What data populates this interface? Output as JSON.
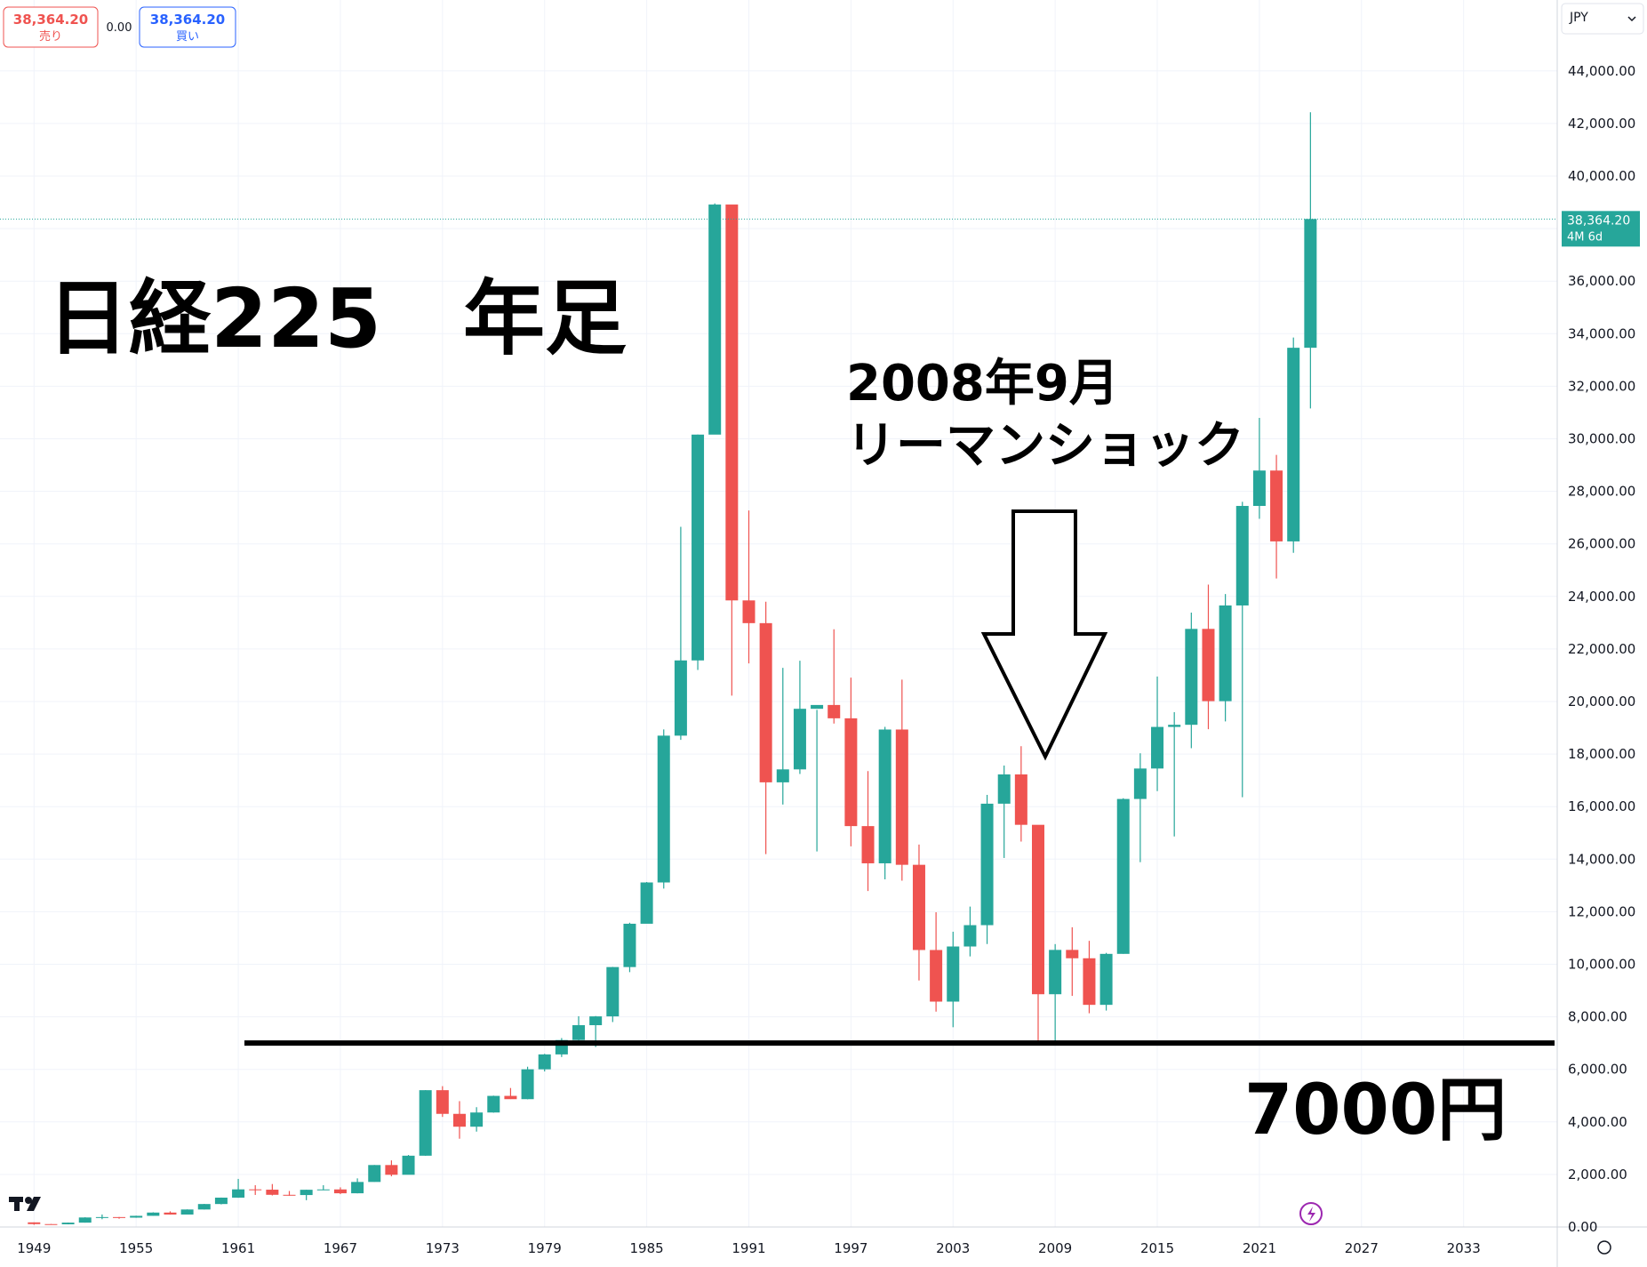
{
  "chart_data": {
    "type": "candlestick",
    "title": "日経225　年足",
    "annotations": [
      "2008年9月",
      "リーマンショック"
    ],
    "hline": {
      "value": 7000,
      "label": "7000円"
    },
    "quote": {
      "sell_price": "38,364.20",
      "sell_label": "売り",
      "spread": "0.00",
      "buy_price": "38,364.20",
      "buy_label": "買い",
      "currency": "JPY"
    },
    "price_label": {
      "value": 38364.2,
      "label": "38,364.20",
      "period": "4M 6d"
    },
    "up_color": "#26a69a",
    "down_color": "#ef5350",
    "x": [
      1949,
      1950,
      1951,
      1952,
      1953,
      1954,
      1955,
      1956,
      1957,
      1958,
      1959,
      1960,
      1961,
      1962,
      1963,
      1964,
      1965,
      1966,
      1967,
      1968,
      1969,
      1970,
      1971,
      1972,
      1973,
      1974,
      1975,
      1976,
      1977,
      1978,
      1979,
      1980,
      1981,
      1982,
      1983,
      1984,
      1985,
      1986,
      1987,
      1988,
      1989,
      1990,
      1991,
      1992,
      1993,
      1994,
      1995,
      1996,
      1997,
      1998,
      1999,
      2000,
      2001,
      2002,
      2003,
      2004,
      2005,
      2006,
      2007,
      2008,
      2009,
      2010,
      2011,
      2012,
      2013,
      2014,
      2015,
      2016,
      2017,
      2018,
      2019,
      2020,
      2021,
      2022,
      2023,
      2024
    ],
    "open": [
      176,
      110,
      102,
      166,
      362,
      377,
      356,
      425,
      549,
      474,
      666,
      874,
      1117,
      1432,
      1420,
      1225,
      1216,
      1417,
      1430,
      1283,
      1714,
      2358,
      1987,
      2713,
      5207,
      4306,
      3817,
      4358,
      4990,
      4865,
      6001,
      6569,
      7116,
      7681,
      8016,
      9893,
      11542,
      13113,
      18701,
      21564,
      30159,
      38915,
      23848,
      22983,
      16924,
      17417,
      19723,
      19868,
      19361,
      15258,
      13842,
      18934,
      13785,
      10542,
      8578,
      10676,
      11488,
      16111,
      17225,
      15307,
      8859,
      10546,
      10228,
      8455,
      10395,
      16291,
      17450,
      19033,
      19114,
      22764,
      20014,
      23656,
      27444,
      28791,
      26094,
      33464
    ],
    "high": [
      176,
      115,
      170,
      370,
      475,
      380,
      430,
      560,
      595,
      670,
      880,
      1120,
      1830,
      1590,
      1635,
      1370,
      1420,
      1590,
      1510,
      1850,
      2360,
      2535,
      2740,
      5210,
      5360,
      4790,
      4560,
      5000,
      5290,
      6100,
      6590,
      7190,
      8020,
      8030,
      9900,
      11580,
      13130,
      18940,
      26650,
      30160,
      38957,
      38712,
      27270,
      23800,
      21281,
      21552,
      19684,
      22750,
      20910,
      17352,
      19036,
      20833,
      14556,
      11979,
      11238,
      12195,
      16445,
      17563,
      18300,
      15156,
      10767,
      11408,
      10891,
      10433,
      16320,
      18030,
      20952,
      19592,
      23382,
      24448,
      24091,
      27602,
      30795,
      29388,
      33853,
      42426
    ],
    "low": [
      85,
      85,
      100,
      165,
      295,
      315,
      350,
      425,
      470,
      475,
      665,
      860,
      1110,
      1220,
      1200,
      1190,
      1020,
      1400,
      1250,
      1280,
      1720,
      1930,
      2000,
      2710,
      4190,
      3360,
      3630,
      4350,
      4870,
      4860,
      5920,
      6470,
      7100,
      6850,
      7800,
      9700,
      11560,
      12880,
      18540,
      21200,
      30180,
      20222,
      21450,
      14194,
      16078,
      17242,
      14295,
      19161,
      14488,
      12787,
      13232,
      13182,
      9382,
      8197,
      7603,
      10299,
      10770,
      14045,
      14669,
      6994,
      7054,
      8796,
      8135,
      8238,
      10398,
      13885,
      16592,
      14864,
      18224,
      18948,
      19241,
      16358,
      26954,
      24681,
      25661,
      31156
    ],
    "close": [
      110,
      102,
      166,
      362,
      377,
      356,
      425,
      549,
      474,
      666,
      874,
      1117,
      1432,
      1420,
      1225,
      1216,
      1417,
      1430,
      1283,
      1714,
      2358,
      1987,
      2713,
      5207,
      4306,
      3817,
      4358,
      4990,
      4865,
      6001,
      6569,
      7116,
      7681,
      8016,
      9893,
      11542,
      13113,
      18701,
      21564,
      30159,
      38915,
      23848,
      22983,
      16924,
      17417,
      19723,
      19868,
      19361,
      15258,
      13842,
      18934,
      13785,
      10542,
      8578,
      10676,
      11488,
      16111,
      17225,
      15307,
      8859,
      10546,
      10228,
      8455,
      10395,
      16291,
      17450,
      19033,
      19114,
      22764,
      20014,
      23656,
      27444,
      28791,
      26094,
      33464,
      38364.2
    ],
    "xlim": [
      1947,
      2038.5
    ],
    "xticks": [
      1949,
      1955,
      1961,
      1967,
      1973,
      1979,
      1985,
      1991,
      1997,
      2003,
      2009,
      2015,
      2021,
      2027,
      2033
    ],
    "ylim": [
      0,
      46700
    ],
    "yticks": [
      {
        "value": 0,
        "label": "0.00"
      },
      {
        "value": 2000,
        "label": "2,000.00"
      },
      {
        "value": 4000,
        "label": "4,000.00"
      },
      {
        "value": 6000,
        "label": "6,000.00"
      },
      {
        "value": 8000,
        "label": "8,000.00"
      },
      {
        "value": 10000,
        "label": "10,000.00"
      },
      {
        "value": 12000,
        "label": "12,000.00"
      },
      {
        "value": 14000,
        "label": "14,000.00"
      },
      {
        "value": 16000,
        "label": "16,000.00"
      },
      {
        "value": 18000,
        "label": "18,000.00"
      },
      {
        "value": 20000,
        "label": "20,000.00"
      },
      {
        "value": 22000,
        "label": "22,000.00"
      },
      {
        "value": 24000,
        "label": "24,000.00"
      },
      {
        "value": 26000,
        "label": "26,000.00"
      },
      {
        "value": 28000,
        "label": "28,000.00"
      },
      {
        "value": 30000,
        "label": "30,000.00"
      },
      {
        "value": 32000,
        "label": "32,000.00"
      },
      {
        "value": 34000,
        "label": "34,000.00"
      },
      {
        "value": 36000,
        "label": "36,000.00"
      },
      {
        "value": 38000,
        "label": "38,000.00"
      },
      {
        "value": 40000,
        "label": "40,000.00"
      },
      {
        "value": 42000,
        "label": "42,000.00"
      },
      {
        "value": 44000,
        "label": "44,000.00"
      }
    ],
    "grid": true
  }
}
